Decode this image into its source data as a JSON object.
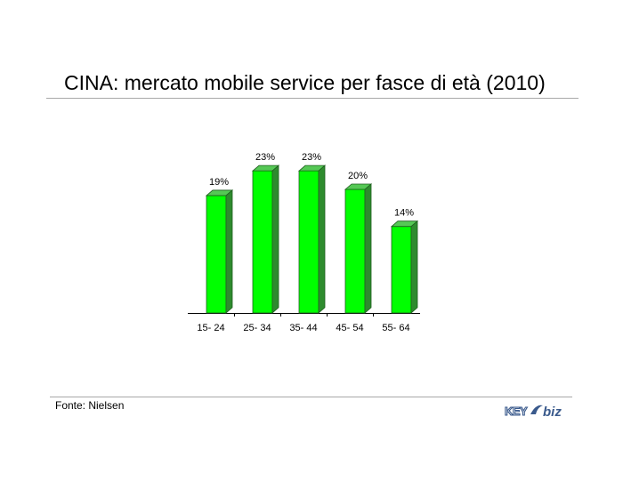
{
  "header": {
    "title": "CINA: mercato mobile service per fasce di età (2010)"
  },
  "footer": {
    "source": "Fonte: Nielsen"
  },
  "logo": {
    "text_key": "KEY",
    "text_biz": "biz"
  },
  "colors": {
    "bar_front": "#00ff00",
    "bar_top": "#55c855",
    "bar_side": "#2e8b2e",
    "bar_edge": "#1f5f1f"
  },
  "chart_data": {
    "type": "bar",
    "categories": [
      "15- 24",
      "25- 34",
      "35- 44",
      "45- 54",
      "55- 64"
    ],
    "values": [
      19,
      23,
      23,
      20,
      14
    ],
    "data_labels": [
      "19%",
      "23%",
      "23%",
      "20%",
      "14%"
    ],
    "title": "",
    "xlabel": "",
    "ylabel": "",
    "ylim": [
      0,
      23
    ],
    "grid": false,
    "legend": "none",
    "style": "3d"
  }
}
